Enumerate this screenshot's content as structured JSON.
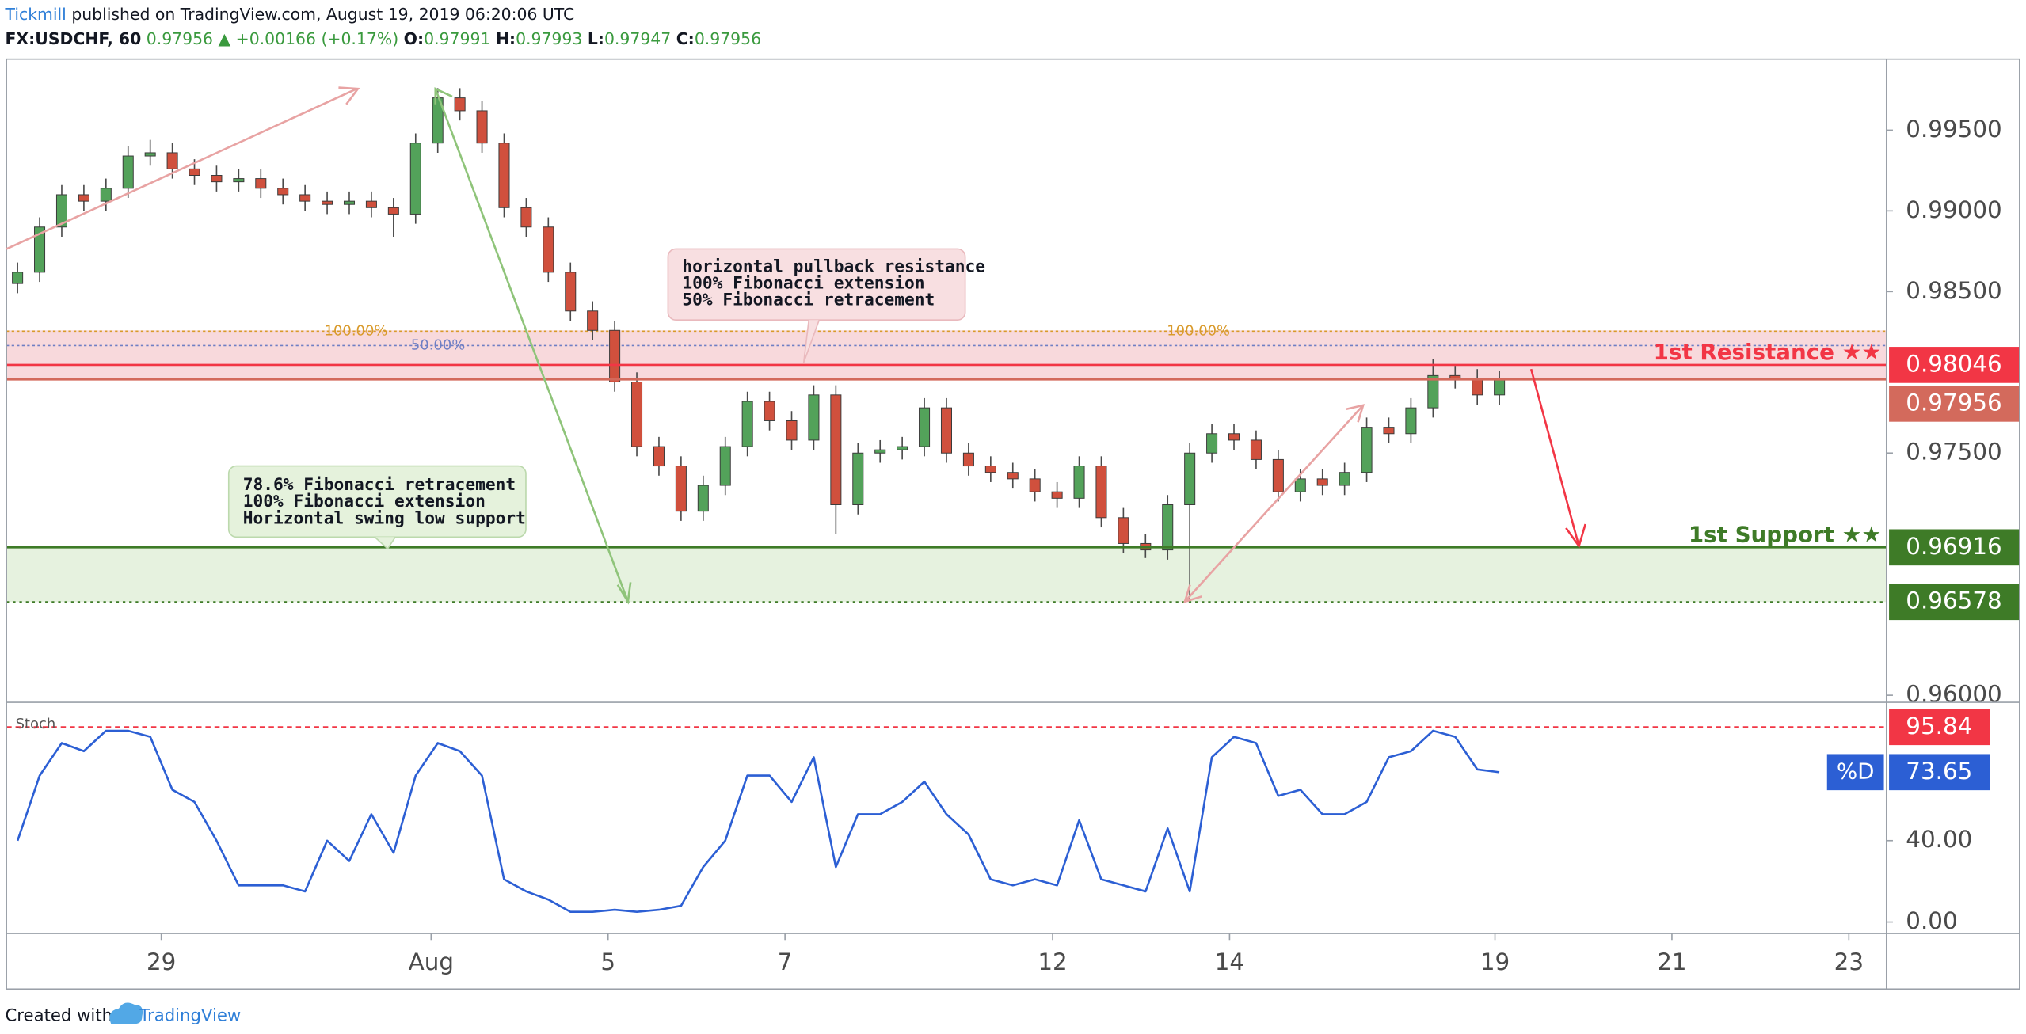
{
  "header": {
    "author": "Tickmill",
    "published": "published on TradingView.com, August 19, 2019 06:20:06 UTC",
    "symbol": "FX:USDCHF, 60",
    "last": "0.97956",
    "change": "▲ +0.00166 (+0.17%)",
    "ohlc": [
      {
        "label": "O:",
        "value": "0.97991"
      },
      {
        "label": "H:",
        "value": "0.97993"
      },
      {
        "label": "L:",
        "value": "0.97947"
      },
      {
        "label": "C:",
        "value": "0.97956"
      }
    ]
  },
  "chart_data": [
    {
      "type": "candlestick",
      "up_color": "#53a25a",
      "down_color": "#d0503d",
      "open": [
        0.9855,
        0.9862,
        0.989,
        0.991,
        0.9906,
        0.9914,
        0.9934,
        0.9936,
        0.9926,
        0.9922,
        0.9918,
        0.992,
        0.9914,
        0.991,
        0.9906,
        0.9904,
        0.9906,
        0.9902,
        0.9898,
        0.9942,
        0.997,
        0.9962,
        0.9942,
        0.9902,
        0.989,
        0.9862,
        0.9838,
        0.9826,
        0.9794,
        0.9754,
        0.9742,
        0.9714,
        0.973,
        0.9754,
        0.9782,
        0.977,
        0.9758,
        0.9786,
        0.9718,
        0.975,
        0.9752,
        0.9754,
        0.9778,
        0.975,
        0.9742,
        0.9738,
        0.9734,
        0.9726,
        0.9722,
        0.9742,
        0.971,
        0.9694,
        0.969,
        0.9718,
        0.975,
        0.9762,
        0.9758,
        0.9746,
        0.9726,
        0.9734,
        0.973,
        0.9738,
        0.9766,
        0.9762,
        0.9778,
        0.9798,
        0.9796,
        0.9786
      ],
      "high": [
        0.9868,
        0.9896,
        0.9916,
        0.9916,
        0.992,
        0.994,
        0.9944,
        0.9942,
        0.9932,
        0.9928,
        0.9926,
        0.9926,
        0.992,
        0.9916,
        0.9912,
        0.9912,
        0.9912,
        0.9908,
        0.9948,
        0.9976,
        0.9976,
        0.9968,
        0.9948,
        0.9908,
        0.9896,
        0.9868,
        0.9844,
        0.9832,
        0.98,
        0.976,
        0.9748,
        0.9736,
        0.976,
        0.9788,
        0.9788,
        0.9776,
        0.9792,
        0.9792,
        0.9756,
        0.9758,
        0.976,
        0.9784,
        0.9784,
        0.9756,
        0.9748,
        0.9744,
        0.974,
        0.9732,
        0.9748,
        0.9748,
        0.9716,
        0.97,
        0.9724,
        0.9756,
        0.9768,
        0.9768,
        0.9764,
        0.9752,
        0.974,
        0.974,
        0.9744,
        0.9772,
        0.9772,
        0.9784,
        0.9808,
        0.9804,
        0.9802,
        0.9801
      ],
      "low": [
        0.9849,
        0.9856,
        0.9884,
        0.99,
        0.99,
        0.9908,
        0.9928,
        0.992,
        0.9916,
        0.9912,
        0.9912,
        0.9908,
        0.9904,
        0.99,
        0.9898,
        0.9898,
        0.9896,
        0.9884,
        0.9892,
        0.9936,
        0.9956,
        0.9936,
        0.9896,
        0.9884,
        0.9856,
        0.9832,
        0.982,
        0.9788,
        0.9748,
        0.9736,
        0.9708,
        0.9708,
        0.9724,
        0.9748,
        0.9764,
        0.9752,
        0.9752,
        0.97,
        0.9712,
        0.9744,
        0.9746,
        0.9748,
        0.9744,
        0.9736,
        0.9732,
        0.9728,
        0.972,
        0.9716,
        0.9716,
        0.9704,
        0.9688,
        0.9685,
        0.9684,
        0.96578,
        0.9744,
        0.9752,
        0.974,
        0.972,
        0.972,
        0.9724,
        0.9724,
        0.9732,
        0.9756,
        0.9756,
        0.9772,
        0.979,
        0.978,
        0.978
      ],
      "close": [
        0.9862,
        0.989,
        0.991,
        0.9906,
        0.9914,
        0.9934,
        0.9936,
        0.9926,
        0.9922,
        0.9918,
        0.992,
        0.9914,
        0.991,
        0.9906,
        0.9904,
        0.9906,
        0.9902,
        0.9898,
        0.9942,
        0.997,
        0.9962,
        0.9942,
        0.9902,
        0.989,
        0.9862,
        0.9838,
        0.9826,
        0.9794,
        0.9754,
        0.9742,
        0.9714,
        0.973,
        0.9754,
        0.9782,
        0.977,
        0.9758,
        0.9786,
        0.9718,
        0.975,
        0.9752,
        0.9754,
        0.9778,
        0.975,
        0.9742,
        0.9738,
        0.9734,
        0.9726,
        0.9722,
        0.9742,
        0.971,
        0.9694,
        0.969,
        0.9718,
        0.975,
        0.9762,
        0.9758,
        0.9746,
        0.9726,
        0.9734,
        0.973,
        0.9738,
        0.9766,
        0.9762,
        0.9778,
        0.9798,
        0.9796,
        0.9786,
        0.97956
      ],
      "xlim": [
        -0.5,
        84.5
      ],
      "ylim": [
        0.9598,
        0.9994
      ],
      "yticks": [
        {
          "value": 0.995,
          "label": "0.99500"
        },
        {
          "value": 0.99,
          "label": "0.99000"
        },
        {
          "value": 0.985,
          "label": "0.98500"
        },
        {
          "value": 0.975,
          "label": "0.97500"
        },
        {
          "value": 0.96,
          "label": "0.96000"
        }
      ],
      "zones": [
        {
          "from": 0.97964,
          "to": 0.9826,
          "color": "#f8d9dc"
        },
        {
          "from": 0.96578,
          "to": 0.96916,
          "color": "#e6f2df"
        }
      ],
      "fib_lines": [
        {
          "value": 0.98255,
          "labels": [
            "100.00%",
            "100.00%"
          ],
          "color": "#d99a2b"
        },
        {
          "value": 0.98166,
          "labels": [
            "50.00%"
          ],
          "color": "#6f7fc4"
        }
      ],
      "levels": [
        {
          "name": "1st Resistance ★★",
          "value": 0.98046,
          "color": "#f23645",
          "style": "solid"
        },
        {
          "value": 0.97956,
          "color": "#d36a5c",
          "style": "solid"
        },
        {
          "name": "1st Support ★★",
          "value": 0.96916,
          "color": "#3e7b27",
          "style": "solid"
        },
        {
          "value": 0.96578,
          "color": "#3e7b27",
          "style": "dotted"
        }
      ],
      "annotations": [
        {
          "lines": [
            "horizontal pullback resistance",
            "100% Fibonacci extension",
            "50% Fibonacci retracement"
          ],
          "color": "#f8dfe1"
        },
        {
          "lines": [
            "78.6% Fibonacci retracement",
            "100% Fibonacci extension",
            "Horizontal swing low support"
          ],
          "color": "#e5f2dc"
        }
      ]
    },
    {
      "type": "line",
      "title": "Stoch",
      "series": [
        {
          "name": "%D",
          "color": "#2c5fd4",
          "values": [
            40,
            72,
            88,
            84,
            94,
            94,
            91,
            65,
            59,
            40,
            18,
            18,
            18,
            15,
            40,
            30,
            53,
            34,
            72,
            88,
            84,
            72,
            21,
            15,
            11,
            5,
            5,
            6,
            5,
            6,
            8,
            27,
            40,
            72,
            72,
            59,
            81,
            27,
            53,
            53,
            59,
            69,
            53,
            43,
            21,
            18,
            21,
            18,
            50,
            21,
            18,
            15,
            46,
            15,
            81,
            91,
            88,
            62,
            65,
            53,
            53,
            59,
            81,
            84,
            94,
            91,
            75,
            73.65
          ]
        }
      ],
      "xlim": [
        -0.5,
        84.5
      ],
      "xticks": [
        {
          "value": 6.5,
          "label": "29"
        },
        {
          "value": 18.7,
          "label": "Aug"
        },
        {
          "value": 26.7,
          "label": "5"
        },
        {
          "value": 34.7,
          "label": "7"
        },
        {
          "value": 46.8,
          "label": "12"
        },
        {
          "value": 54.8,
          "label": "14"
        },
        {
          "value": 66.8,
          "label": "19"
        },
        {
          "value": 74.8,
          "label": "21"
        },
        {
          "value": 82.8,
          "label": "23"
        }
      ],
      "ylim": [
        -4.4,
        106.7
      ],
      "yticks": [
        {
          "value": 0,
          "label": "0.00"
        },
        {
          "value": 40,
          "label": "40.00"
        }
      ],
      "levels": [
        {
          "value": 95.84,
          "color": "#f23645",
          "style": "dashed"
        }
      ]
    }
  ],
  "footer": {
    "created": "Created with",
    "brand": "TradingView"
  }
}
